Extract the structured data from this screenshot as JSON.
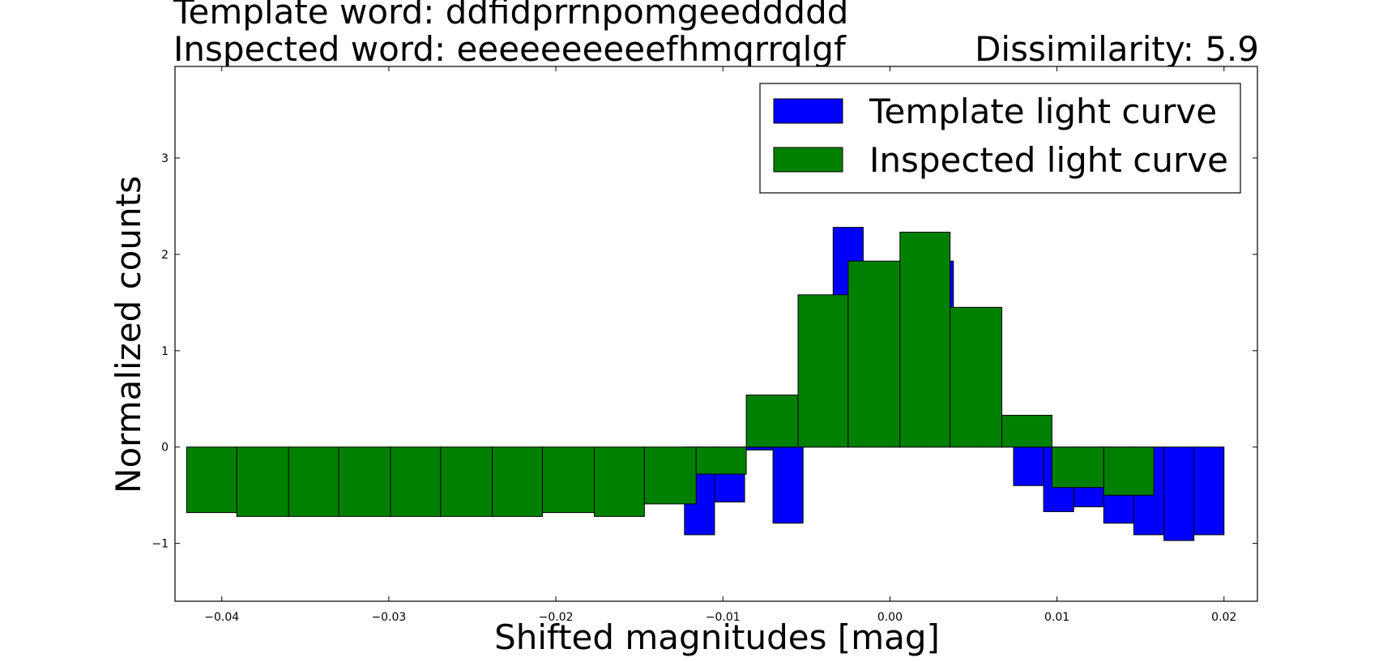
{
  "header": {
    "template_word": "Template word: ddfidprrnpomgeeddddd",
    "inspected_word": "Inspected word: eeeeeeeeeefhmqrrqlgf",
    "dissimilarity": "Dissimilarity: 5.9"
  },
  "chart_data": {
    "type": "bar",
    "xlabel": "Shifted magnitudes [mag]",
    "ylabel": "Normalized counts",
    "xlim": [
      -0.0428,
      0.022
    ],
    "ylim": [
      -1.6,
      3.95
    ],
    "xticks": [
      -0.04,
      -0.03,
      -0.02,
      -0.01,
      0.0,
      0.01,
      0.02
    ],
    "xtick_labels": [
      "−0.04",
      "−0.03",
      "−0.02",
      "−0.01",
      "0.00",
      "0.01",
      "0.02"
    ],
    "yticks": [
      -1,
      0,
      1,
      2,
      3
    ],
    "ytick_labels": [
      "−1",
      "0",
      "1",
      "2",
      "3"
    ],
    "legend_position": "top-right",
    "series": [
      {
        "name": "Template light curve",
        "color": "#0000ff",
        "bin_edges": [
          -0.0123,
          -0.0105,
          -0.0087,
          -0.007,
          -0.0052,
          -0.0034,
          -0.0016,
          0.0002,
          0.002,
          0.0038,
          0.0056,
          0.0074,
          0.0092,
          0.011,
          0.0128,
          0.0146,
          0.0164,
          0.0182,
          0.02
        ],
        "values": [
          -0.91,
          -0.57,
          -0.03,
          -0.79,
          1.13,
          2.28,
          1.85,
          1.85,
          1.93,
          1.07,
          0.02,
          -0.4,
          -0.67,
          -0.62,
          -0.79,
          -0.91,
          -0.97,
          -0.91
        ]
      },
      {
        "name": "Inspected light curve",
        "color": "#008000",
        "bin_edges": [
          -0.0421,
          -0.0391,
          -0.036,
          -0.033,
          -0.0299,
          -0.0269,
          -0.0238,
          -0.0208,
          -0.0177,
          -0.0147,
          -0.0116,
          -0.0086,
          -0.0055,
          -0.0025,
          0.0006,
          0.0036,
          0.0067,
          0.0097,
          0.0128,
          0.0158
        ],
        "values": [
          -0.68,
          -0.72,
          -0.72,
          -0.72,
          -0.72,
          -0.72,
          -0.72,
          -0.68,
          -0.72,
          -0.59,
          -0.28,
          0.54,
          1.58,
          1.93,
          2.23,
          1.45,
          0.33,
          -0.42,
          -0.5
        ]
      }
    ]
  }
}
